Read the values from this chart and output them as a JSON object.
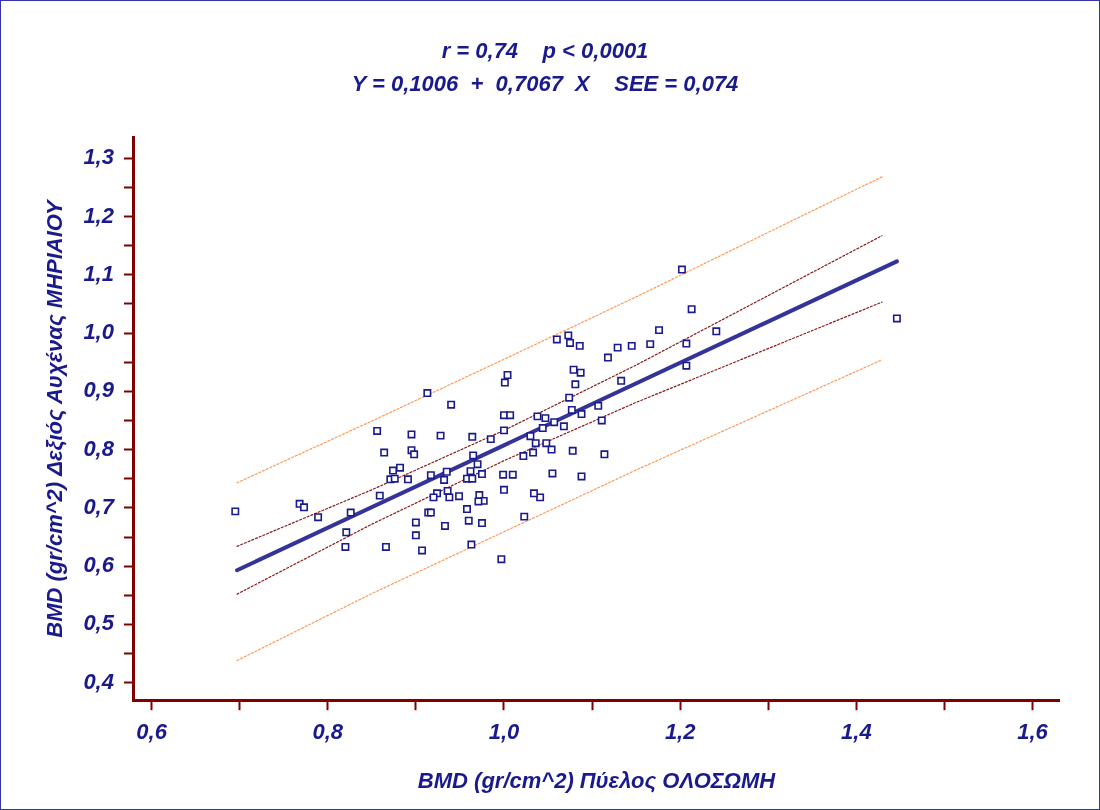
{
  "chart_data": {
    "type": "scatter",
    "title": "r = 0,74    p < 0,0001",
    "subtitle": "Y = 0,1006  +  0,7067  X    SEE = 0,074",
    "xlabel": "BMD (gr/cm^2) Πύελος ΟΛΟΣΩΜΗ",
    "ylabel": "BMD (gr/cm^2) Δεξιός Αυχένας ΜΗΡΙΑΙΟΥ",
    "xlim": [
      0.58,
      1.63
    ],
    "ylim": [
      0.37,
      1.335
    ],
    "xticks": [
      {
        "value": 0.6,
        "label": "0,6"
      },
      {
        "value": 0.7,
        "label": null
      },
      {
        "value": 0.8,
        "label": "0,8"
      },
      {
        "value": 0.9,
        "label": null
      },
      {
        "value": 1.0,
        "label": "1,0"
      },
      {
        "value": 1.1,
        "label": null
      },
      {
        "value": 1.2,
        "label": "1,2"
      },
      {
        "value": 1.3,
        "label": null
      },
      {
        "value": 1.4,
        "label": "1,4"
      },
      {
        "value": 1.5,
        "label": null
      },
      {
        "value": 1.6,
        "label": "1,6"
      }
    ],
    "yticks": [
      {
        "value": 0.4,
        "label": "0,4"
      },
      {
        "value": 0.45,
        "label": null
      },
      {
        "value": 0.5,
        "label": "0,5"
      },
      {
        "value": 0.55,
        "label": null
      },
      {
        "value": 0.6,
        "label": "0,6"
      },
      {
        "value": 0.65,
        "label": null
      },
      {
        "value": 0.7,
        "label": "0,7"
      },
      {
        "value": 0.75,
        "label": null
      },
      {
        "value": 0.8,
        "label": "0,8"
      },
      {
        "value": 0.85,
        "label": null
      },
      {
        "value": 0.9,
        "label": "0,9"
      },
      {
        "value": 0.95,
        "label": null
      },
      {
        "value": 1.0,
        "label": "1,0"
      },
      {
        "value": 1.05,
        "label": null
      },
      {
        "value": 1.1,
        "label": "1,1"
      },
      {
        "value": 1.15,
        "label": null
      },
      {
        "value": 1.2,
        "label": "1,2"
      },
      {
        "value": 1.25,
        "label": null
      },
      {
        "value": 1.3,
        "label": "1,3"
      }
    ],
    "grid": false,
    "legend": false,
    "series": [
      {
        "type": "scatter",
        "marker": "square",
        "color": "#1a1a8c",
        "x": [
          0.695,
          0.768,
          0.773,
          0.789,
          0.826,
          0.821,
          0.82,
          0.859,
          0.856,
          0.864,
          0.866,
          0.913,
          0.94,
          0.895,
          0.928,
          0.895,
          0.898,
          0.882,
          0.874,
          0.871,
          0.876,
          0.891,
          0.917,
          0.935,
          0.932,
          0.924,
          0.92,
          0.936,
          0.938,
          0.949,
          0.914,
          0.917,
          0.9,
          0.9,
          0.907,
          0.933,
          0.958,
          0.96,
          0.975,
          0.963,
          0.997,
          0.964,
          0.985,
          0.965,
          0.97,
          0.962,
          0.975,
          0.958,
          0.964,
          0.972,
          0.977,
          0.971,
          0.999,
          1.01,
          1.0,
          1.0,
          1.0,
          1.007,
          1.001,
          1.004,
          1.202,
          1.213,
          1.241,
          1.207,
          1.207,
          1.176,
          1.166,
          1.145,
          1.129,
          1.118,
          1.133,
          1.06,
          1.073,
          1.075,
          1.086,
          1.079,
          1.087,
          1.081,
          1.074,
          1.107,
          1.111,
          1.077,
          1.088,
          1.038,
          1.047,
          1.057,
          1.068,
          1.044,
          1.03,
          1.036,
          1.048,
          1.054,
          1.033,
          1.022,
          1.078,
          1.114,
          1.055,
          1.088,
          1.041,
          1.023,
          1.446,
          1.034
        ],
        "values": [
          0.694,
          0.707,
          0.701,
          0.684,
          0.692,
          0.658,
          0.633,
          0.721,
          0.832,
          0.795,
          0.633,
          0.897,
          0.877,
          0.826,
          0.824,
          0.799,
          0.792,
          0.769,
          0.764,
          0.749,
          0.75,
          0.749,
          0.756,
          0.762,
          0.748,
          0.725,
          0.718,
          0.729,
          0.718,
          0.72,
          0.692,
          0.692,
          0.675,
          0.653,
          0.627,
          0.669,
          0.698,
          0.678,
          0.674,
          0.637,
          0.612,
          0.822,
          0.818,
          0.79,
          0.775,
          0.763,
          0.758,
          0.75,
          0.75,
          0.722,
          0.712,
          0.711,
          0.757,
          0.757,
          0.731,
          0.833,
          0.859,
          0.859,
          0.915,
          0.928,
          1.109,
          1.041,
          1.003,
          0.982,
          0.944,
          1.005,
          0.981,
          0.978,
          0.975,
          0.958,
          0.918,
          0.989,
          0.996,
          0.983,
          0.978,
          0.937,
          0.932,
          0.912,
          0.889,
          0.875,
          0.85,
          0.868,
          0.861,
          0.857,
          0.854,
          0.847,
          0.84,
          0.837,
          0.823,
          0.811,
          0.811,
          0.8,
          0.795,
          0.789,
          0.798,
          0.792,
          0.759,
          0.754,
          0.718,
          0.685,
          1.025,
          0.725
        ]
      },
      {
        "type": "line",
        "marker": "none",
        "line_style": "solid",
        "color": "#333399",
        "x": [
          0.697,
          1.446
        ],
        "values": [
          0.593,
          1.123
        ]
      },
      {
        "type": "line",
        "marker": "none",
        "line_style": "dotted",
        "color": "#8b1a1a",
        "x": [
          0.697,
          0.85,
          1.0,
          1.15,
          1.429
        ],
        "values": [
          0.634,
          0.731,
          0.833,
          0.945,
          1.167
        ]
      },
      {
        "type": "line",
        "marker": "none",
        "line_style": "dotted",
        "color": "#8b1a1a",
        "x": [
          0.697,
          0.85,
          1.0,
          1.15,
          1.429
        ],
        "values": [
          0.552,
          0.672,
          0.781,
          0.881,
          1.053
        ]
      },
      {
        "type": "line",
        "marker": "none",
        "line_style": "dotted",
        "color": "#ff9955",
        "x": [
          0.697,
          0.85,
          1.0,
          1.15,
          1.429
        ],
        "values": [
          0.743,
          0.849,
          0.955,
          1.062,
          1.268
        ]
      },
      {
        "type": "line",
        "marker": "none",
        "line_style": "dotted",
        "color": "#ff9955",
        "x": [
          0.697,
          0.85,
          1.0,
          1.15,
          1.429
        ],
        "values": [
          0.438,
          0.553,
          0.659,
          0.765,
          0.954
        ]
      }
    ]
  }
}
